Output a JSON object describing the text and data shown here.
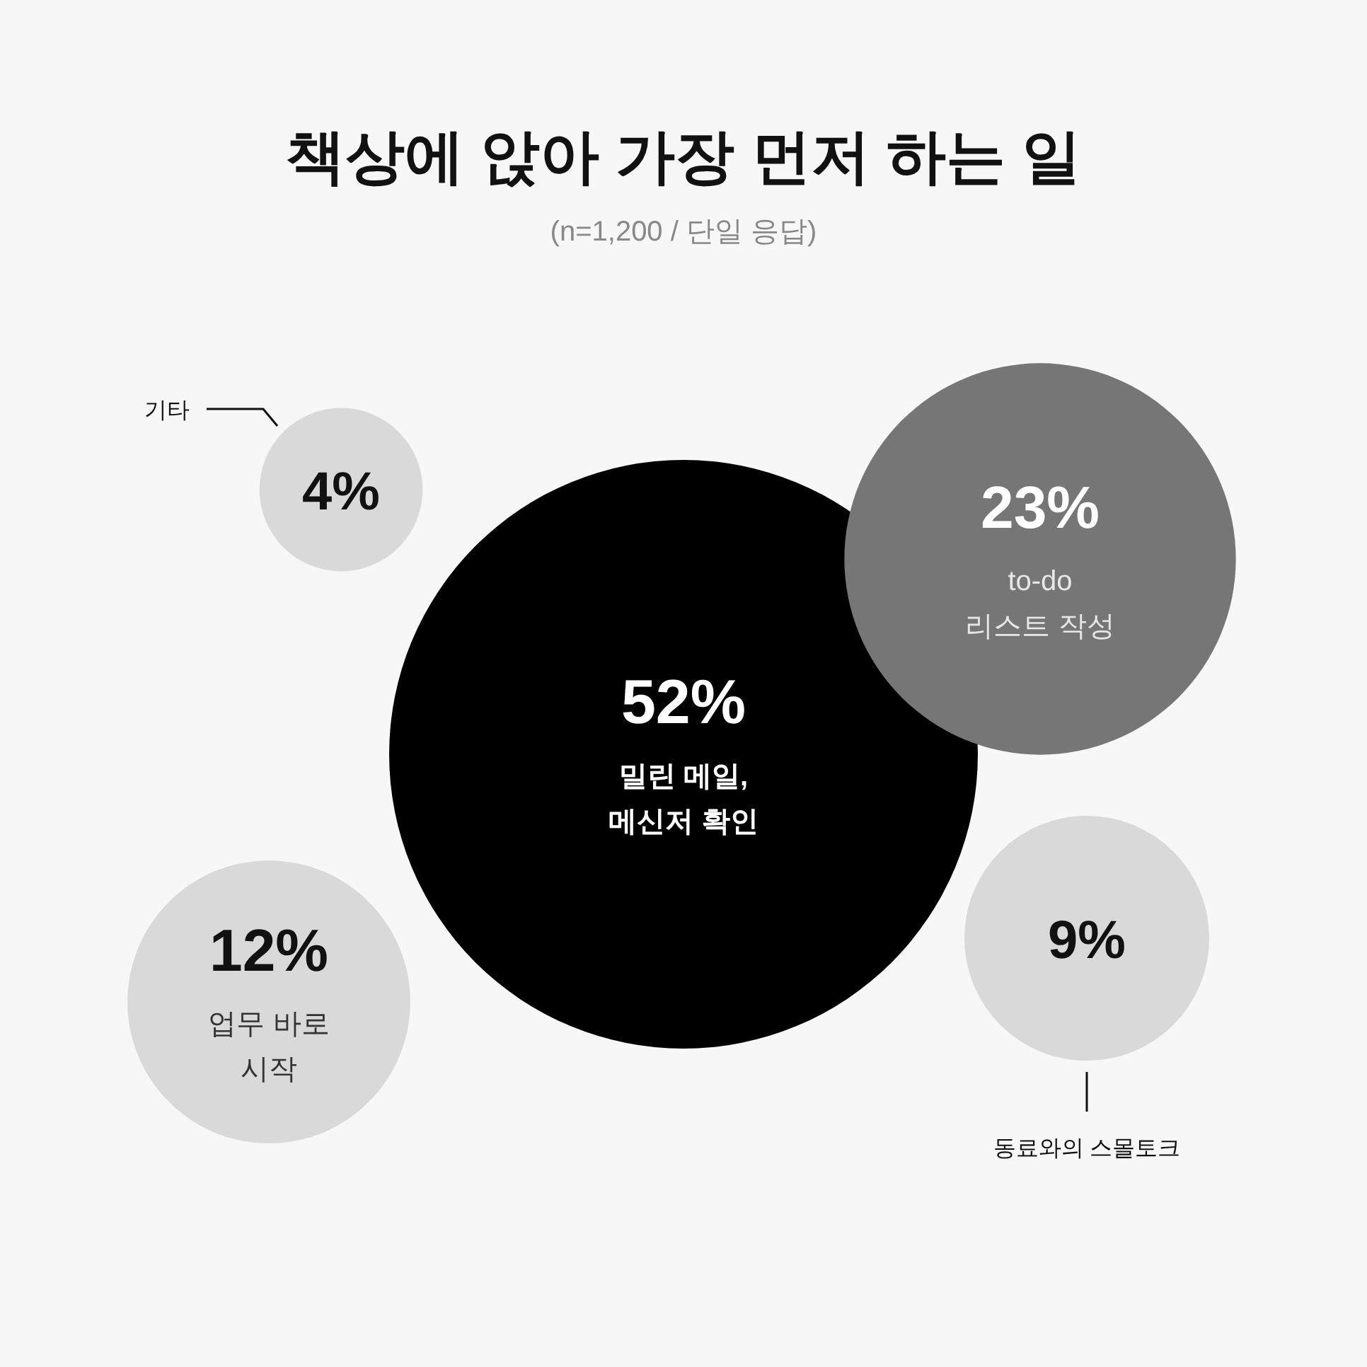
{
  "chart_data": {
    "type": "other",
    "title": "책상에 앉아 가장 먼저 하는 일",
    "subtitle": "(n=1,200 / 단일 응답)",
    "categories": [
      "밀린 메일,\n메신저 확인",
      "to-do\n리스트 작성",
      "업무 바로\n시작",
      "동료와의 스몰토크",
      "기타"
    ],
    "values": [
      52,
      23,
      12,
      9,
      4
    ],
    "value_labels": [
      "52%",
      "23%",
      "12%",
      "9%",
      "4%"
    ],
    "colors": [
      "#000000",
      "#767676",
      "#d9d9d9",
      "#d9d9d9",
      "#d9d9d9"
    ]
  }
}
